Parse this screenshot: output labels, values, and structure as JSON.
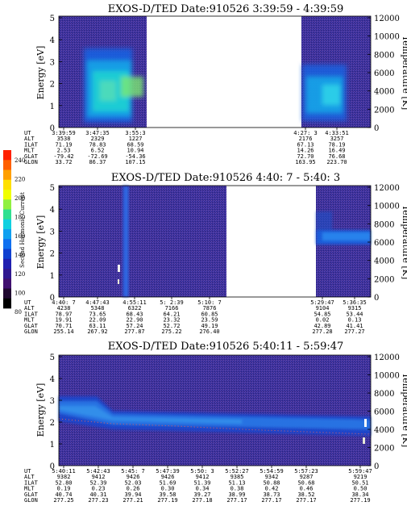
{
  "colorbar": {
    "label": "Second Harmonic Current",
    "ticks": [
      "240",
      "220",
      "200",
      "180",
      "160",
      "140",
      "120",
      "100",
      "80"
    ]
  },
  "panels": [
    {
      "title": "EXOS-D/TED   Date:910526  3:39:59 - 4:39:59",
      "energy_label": "Energy [eV]",
      "temp_label": "Temperature [K]",
      "energy_ticks": [
        "5",
        "4",
        "3",
        "2",
        "1",
        "0"
      ],
      "temp_ticks": [
        "12000",
        "10000",
        "8000",
        "6000",
        "4000",
        "2000",
        "0"
      ],
      "row_labels": [
        "UT",
        "ALT",
        "ILAT",
        "MLT",
        "GLAT",
        "GLON"
      ],
      "columns": [
        {
          "values": [
            "3:39:59",
            "3538",
            "71.19",
            "2.53",
            "-79.42",
            "33.72"
          ]
        },
        {
          "values": [
            "3:47:35",
            "2329",
            "78.83",
            "6.52",
            "-72.69",
            "86.37"
          ]
        },
        {
          "values": [
            "3:55:3",
            "1227",
            "68.59",
            "10.94",
            "-54.36",
            "107.15"
          ]
        },
        {
          "values": [
            "4:27: 3",
            "2176",
            "67.13",
            "14.26",
            "72.70",
            "163.95"
          ]
        },
        {
          "values": [
            "4:33:51",
            "3257",
            "78.19",
            "16.49",
            "76.68",
            "223.70"
          ]
        }
      ]
    },
    {
      "title": "EXOS-D/TED   Date:910526  4:40: 7 - 5:40: 3",
      "energy_label": "Energy [eV]",
      "temp_label": "Temperature [K]",
      "energy_ticks": [
        "5",
        "4",
        "3",
        "2",
        "1",
        "0"
      ],
      "temp_ticks": [
        "12000",
        "10000",
        "8000",
        "6000",
        "4000",
        "2000",
        "0"
      ],
      "row_labels": [
        "UT",
        "ALT",
        "ILAT",
        "MLT",
        "GLAT",
        "GLON"
      ],
      "columns": [
        {
          "values": [
            "4:40: 7",
            "4238",
            "78.97",
            "19.91",
            "70.71",
            "255.14"
          ]
        },
        {
          "values": [
            "4:47:43",
            "5348",
            "73.65",
            "22.09",
            "63.11",
            "267.92"
          ]
        },
        {
          "values": [
            "4:55:11",
            "6322",
            "68.43",
            "22.90",
            "57.24",
            "277.87"
          ]
        },
        {
          "values": [
            "5: 2:39",
            "7166",
            "64.21",
            "23.32",
            "52.72",
            "275.22"
          ]
        },
        {
          "values": [
            "5:10: 7",
            "7876",
            "60.85",
            "23.59",
            "49.19",
            "276.40"
          ]
        },
        {
          "values": [
            "5:29:47",
            "9104",
            "54.85",
            "0.02",
            "42.89",
            "277.28"
          ]
        },
        {
          "values": [
            "5:36:35",
            "9315",
            "53.44",
            "0.13",
            "41.41",
            "277.27"
          ]
        }
      ]
    },
    {
      "title": "EXOS-D/TED   Date:910526  5:40:11 - 5:59:47",
      "energy_label": "Energy [eV]",
      "temp_label": "Temperature [K]",
      "energy_ticks": [
        "5",
        "4",
        "3",
        "2",
        "1",
        "0"
      ],
      "temp_ticks": [
        "12000",
        "10000",
        "8000",
        "6000",
        "4000",
        "2000",
        "0"
      ],
      "row_labels": [
        "UT",
        "ALT",
        "ILAT",
        "MLT",
        "GLAT",
        "GLON"
      ],
      "columns": [
        {
          "values": [
            "5:40:11",
            "9382",
            "52.80",
            "0.19",
            "40.74",
            "277.25"
          ]
        },
        {
          "values": [
            "5:42:43",
            "9412",
            "52.39",
            "0.23",
            "40.31",
            "277.23"
          ]
        },
        {
          "values": [
            "5:45: 7",
            "9426",
            "52.03",
            "0.26",
            "39.94",
            "277.21"
          ]
        },
        {
          "values": [
            "5:47:39",
            "9426",
            "51.69",
            "0.30",
            "39.58",
            "277.19"
          ]
        },
        {
          "values": [
            "5:50: 3",
            "9412",
            "51.39",
            "0.34",
            "39.27",
            "277.18"
          ]
        },
        {
          "values": [
            "5:52:27",
            "9385",
            "51.13",
            "0.38",
            "38.99",
            "277.17"
          ]
        },
        {
          "values": [
            "5:54:59",
            "9342",
            "50.88",
            "0.42",
            "38.73",
            "277.17"
          ]
        },
        {
          "values": [
            "5:57:23",
            "9287",
            "50.68",
            "0.46",
            "38.52",
            "277.17"
          ]
        },
        {
          "values": [
            "5:59:47",
            "9219",
            "50.51",
            "0.50",
            "38.34",
            "277.19"
          ]
        }
      ]
    }
  ],
  "chart_data": [
    {
      "type": "heatmap",
      "title": "EXOS-D/TED   Date:910526  3:39:59 - 4:39:59",
      "ylabel": "Energy [eV]",
      "ylim": [
        0,
        5
      ],
      "y2label": "Temperature [K]",
      "y2lim": [
        0,
        12000
      ],
      "colorbar_label": "Second Harmonic Current",
      "colorbar_range": [
        80,
        240
      ],
      "x_ticks_ut": [
        "3:39:59",
        "3:47:35",
        "3:55:3",
        "4:27: 3",
        "4:33:51"
      ],
      "data_gaps": [
        "approx 3:57 - 4:25"
      ],
      "features": [
        {
          "ut_range": [
            "3:45",
            "3:56"
          ],
          "energy_range_eV": [
            0.5,
            3.5
          ],
          "level": "cyan-green enhancement"
        },
        {
          "ut_range": [
            "4:28",
            "4:35"
          ],
          "energy_range_eV": [
            0.8,
            2.5
          ],
          "level": "cyan enhancement"
        }
      ]
    },
    {
      "type": "heatmap",
      "title": "EXOS-D/TED   Date:910526  4:40: 7 - 5:40: 3",
      "ylabel": "Energy [eV]",
      "ylim": [
        0,
        5
      ],
      "y2label": "Temperature [K]",
      "y2lim": [
        0,
        12000
      ],
      "colorbar_label": "Second Harmonic Current",
      "colorbar_range": [
        80,
        240
      ],
      "x_ticks_ut": [
        "4:40: 7",
        "4:47:43",
        "4:55:11",
        "5: 2:39",
        "5:10: 7",
        "5:29:47",
        "5:36:35"
      ],
      "data_gaps": [
        "approx 5:14 - 5:28"
      ],
      "features": [
        {
          "ut_range": [
            "4:54",
            "4:55"
          ],
          "energy_range_eV": [
            0,
            5
          ],
          "level": "vertical blue stripe"
        },
        {
          "ut_range": [
            "5:30",
            "5:40"
          ],
          "energy_range_eV": [
            2.5,
            3.1
          ],
          "level": "blue band"
        }
      ]
    },
    {
      "type": "heatmap",
      "title": "EXOS-D/TED   Date:910526  5:40:11 - 5:59:47",
      "ylabel": "Energy [eV]",
      "ylim": [
        0,
        5
      ],
      "y2label": "Temperature [K]",
      "y2lim": [
        0,
        12000
      ],
      "colorbar_label": "Second Harmonic Current",
      "colorbar_range": [
        80,
        240
      ],
      "x_ticks_ut": [
        "5:40:11",
        "5:42:43",
        "5:45: 7",
        "5:47:39",
        "5:50: 3",
        "5:52:27",
        "5:54:59",
        "5:57:23",
        "5:59:47"
      ],
      "features": [
        {
          "ut_range": [
            "5:40",
            "5:60"
          ],
          "energy_range_eV": [
            2.0,
            3.0
          ],
          "level": "blue band, decreasing in energy"
        }
      ],
      "temperature_points_K": [
        {
          "ut": "5:40:11",
          "value": 4700
        },
        {
          "ut": "5:45: 7",
          "value": 4350
        },
        {
          "ut": "5:50: 3",
          "value": 4200
        },
        {
          "ut": "5:55:00",
          "value": 3900
        },
        {
          "ut": "5:59:47",
          "value": 3500
        }
      ]
    }
  ]
}
